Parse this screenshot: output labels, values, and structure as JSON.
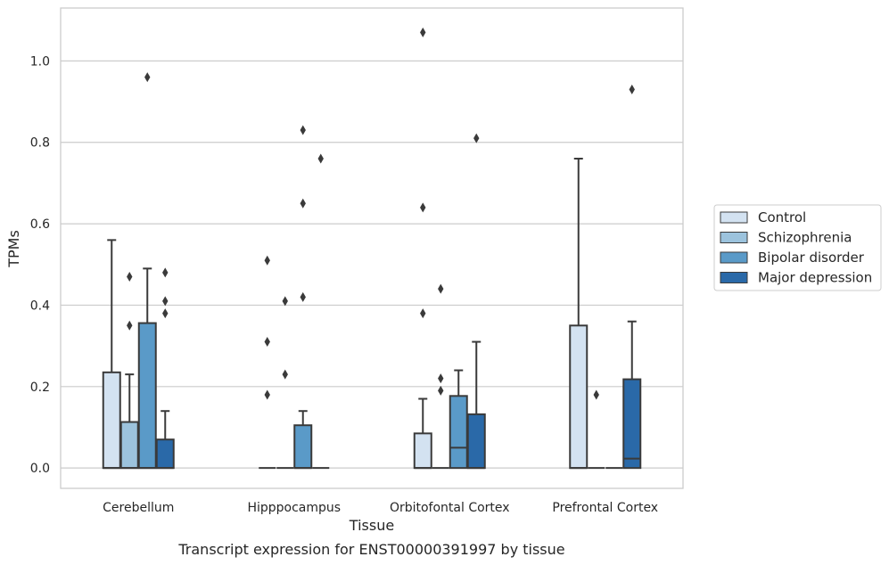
{
  "chart_data": {
    "type": "box",
    "title": "",
    "caption": "Transcript expression for ENST00000391997 by tissue",
    "xlabel": "Tissue",
    "ylabel": "TPMs",
    "ylim": [
      -0.05,
      1.13
    ],
    "yticks": [
      0.0,
      0.2,
      0.4,
      0.6,
      0.8,
      1.0
    ],
    "ytick_labels": [
      "0.0",
      "0.2",
      "0.4",
      "0.6",
      "0.8",
      "1.0"
    ],
    "grid": "horizontal",
    "legend_position": "right",
    "categories": [
      "Cerebellum",
      "Hipppocampus",
      "Orbitofontal Cortex",
      "Prefrontal Cortex"
    ],
    "series": [
      {
        "name": "Control",
        "color": "#d3e2f1",
        "boxes": [
          {
            "q1": 0.0,
            "median": 0.0,
            "q3": 0.235,
            "whisker_low": 0.0,
            "whisker_high": 0.56,
            "outliers": []
          },
          {
            "q1": 0.0,
            "median": 0.0,
            "q3": 0.0,
            "whisker_low": 0.0,
            "whisker_high": 0.0,
            "outliers": [
              0.18,
              0.31,
              0.51
            ]
          },
          {
            "q1": 0.0,
            "median": 0.0,
            "q3": 0.085,
            "whisker_low": 0.0,
            "whisker_high": 0.17,
            "outliers": [
              0.38,
              0.64,
              1.07
            ]
          },
          {
            "q1": 0.0,
            "median": 0.0,
            "q3": 0.35,
            "whisker_low": 0.0,
            "whisker_high": 0.76,
            "outliers": []
          }
        ]
      },
      {
        "name": "Schizophrenia",
        "color": "#9cc3dd",
        "boxes": [
          {
            "q1": 0.0,
            "median": 0.0,
            "q3": 0.113,
            "whisker_low": 0.0,
            "whisker_high": 0.23,
            "outliers": [
              0.35,
              0.47
            ]
          },
          {
            "q1": 0.0,
            "median": 0.0,
            "q3": 0.0,
            "whisker_low": 0.0,
            "whisker_high": 0.0,
            "outliers": [
              0.23,
              0.41
            ]
          },
          {
            "q1": 0.0,
            "median": 0.0,
            "q3": 0.0,
            "whisker_low": 0.0,
            "whisker_high": 0.0,
            "outliers": [
              0.19,
              0.22,
              0.44
            ]
          },
          {
            "q1": 0.0,
            "median": 0.0,
            "q3": 0.0,
            "whisker_low": 0.0,
            "whisker_high": 0.0,
            "outliers": [
              0.18
            ]
          }
        ]
      },
      {
        "name": "Bipolar disorder",
        "color": "#5a9ac8",
        "boxes": [
          {
            "q1": 0.0,
            "median": 0.0,
            "q3": 0.356,
            "whisker_low": 0.0,
            "whisker_high": 0.49,
            "outliers": [
              0.96
            ]
          },
          {
            "q1": 0.0,
            "median": 0.0,
            "q3": 0.105,
            "whisker_low": 0.0,
            "whisker_high": 0.14,
            "outliers": [
              0.42,
              0.65,
              0.83
            ]
          },
          {
            "q1": 0.0,
            "median": 0.05,
            "q3": 0.177,
            "whisker_low": 0.0,
            "whisker_high": 0.24,
            "outliers": []
          },
          {
            "q1": 0.0,
            "median": 0.0,
            "q3": 0.0,
            "whisker_low": 0.0,
            "whisker_high": 0.0,
            "outliers": []
          }
        ]
      },
      {
        "name": "Major depression",
        "color": "#2a69a8",
        "boxes": [
          {
            "q1": 0.0,
            "median": 0.0,
            "q3": 0.07,
            "whisker_low": 0.0,
            "whisker_high": 0.14,
            "outliers": [
              0.38,
              0.41,
              0.48
            ]
          },
          {
            "q1": 0.0,
            "median": 0.0,
            "q3": 0.0,
            "whisker_low": 0.0,
            "whisker_high": 0.0,
            "outliers": [
              0.76
            ]
          },
          {
            "q1": 0.0,
            "median": 0.0,
            "q3": 0.132,
            "whisker_low": 0.0,
            "whisker_high": 0.31,
            "outliers": [
              0.81
            ]
          },
          {
            "q1": 0.0,
            "median": 0.023,
            "q3": 0.218,
            "whisker_low": 0.0,
            "whisker_high": 0.36,
            "outliers": [
              0.93
            ]
          }
        ]
      }
    ]
  },
  "colors": {
    "grid": "#cccccc",
    "frame": "#cccccc",
    "line": "#3a3a3a"
  }
}
